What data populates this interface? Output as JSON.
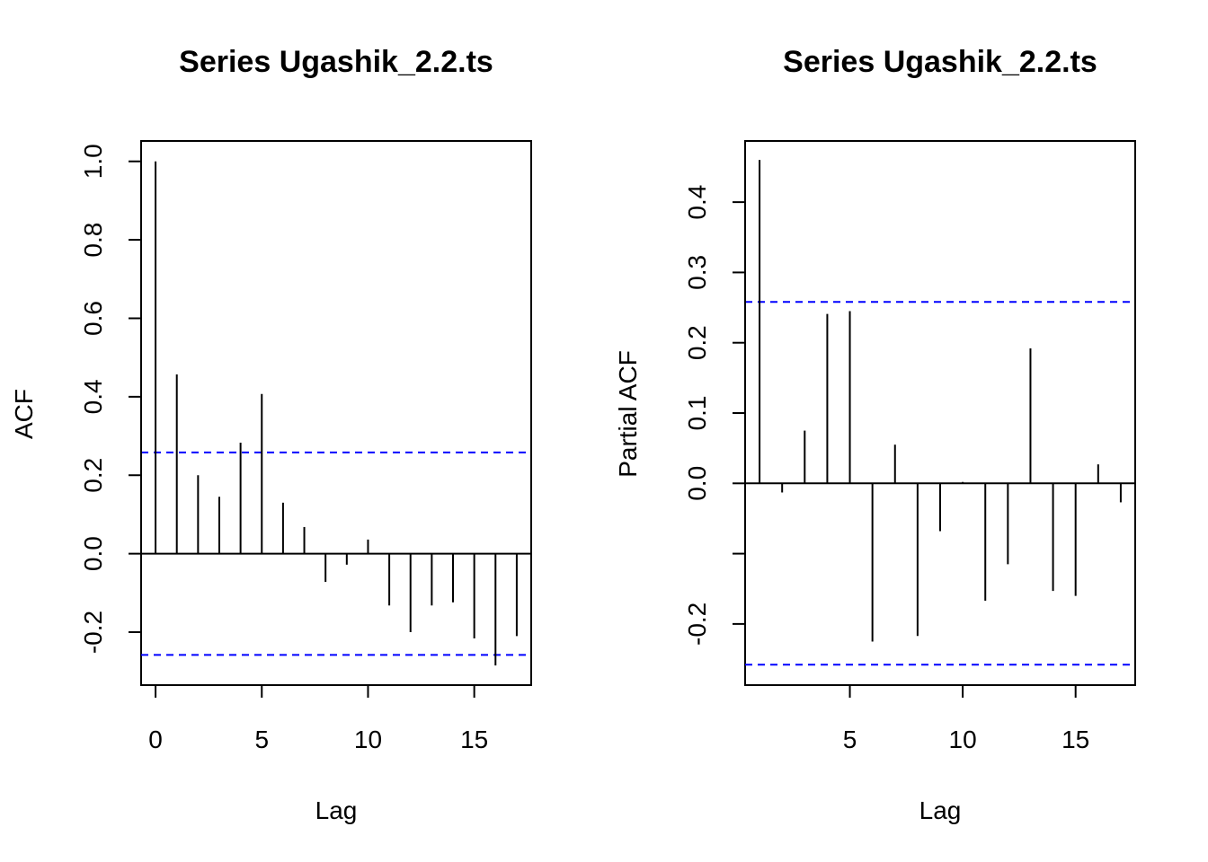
{
  "chart_data": [
    {
      "type": "bar",
      "subtype": "acf-stem",
      "title": "Series  Ugashik_2.2.ts",
      "xlabel": "Lag",
      "ylabel": "ACF",
      "xlim": [
        -0.68,
        17.68
      ],
      "ylim": [
        -0.335,
        1.052
      ],
      "xticks": [
        0,
        5,
        10,
        15
      ],
      "xtick_labels": [
        "0",
        "5",
        "10",
        "15"
      ],
      "yticks": [
        -0.2,
        0.0,
        0.2,
        0.4,
        0.6,
        0.8,
        1.0
      ],
      "ytick_labels": [
        "-0.2",
        "0.0",
        "0.2",
        "0.4",
        "0.6",
        "0.8",
        "1.0"
      ],
      "lags": [
        0,
        1,
        2,
        3,
        4,
        5,
        6,
        7,
        8,
        9,
        10,
        11,
        12,
        13,
        14,
        15,
        16,
        17
      ],
      "values": [
        1.0,
        0.457,
        0.2,
        0.145,
        0.283,
        0.407,
        0.13,
        0.068,
        -0.072,
        -0.028,
        0.036,
        -0.132,
        -0.2,
        -0.132,
        -0.124,
        -0.216,
        -0.285,
        -0.21
      ],
      "confidence_limits": [
        0.258,
        -0.258
      ],
      "colors": {
        "stem": "#000000",
        "ci_line": "#0000FF",
        "zero_line": "#000000"
      }
    },
    {
      "type": "bar",
      "subtype": "pacf-stem",
      "title": "Series  Ugashik_2.2.ts",
      "xlabel": "Lag",
      "ylabel": "Partial ACF",
      "xlim": [
        0.36,
        17.64
      ],
      "ylim": [
        -0.287,
        0.487
      ],
      "xticks": [
        5,
        10,
        15
      ],
      "xtick_labels": [
        "5",
        "10",
        "15"
      ],
      "yticks": [
        -0.2,
        -0.1,
        0.0,
        0.1,
        0.2,
        0.3,
        0.4
      ],
      "ytick_labels": [
        "-0.2",
        "",
        "0.0",
        "0.1",
        "0.2",
        "0.3",
        "0.4"
      ],
      "lags": [
        1,
        2,
        3,
        4,
        5,
        6,
        7,
        8,
        9,
        10,
        11,
        12,
        13,
        14,
        15,
        16,
        17
      ],
      "values": [
        0.46,
        -0.013,
        0.075,
        0.241,
        0.245,
        -0.225,
        0.055,
        -0.217,
        -0.068,
        0.002,
        -0.167,
        -0.115,
        0.192,
        -0.153,
        -0.16,
        0.027,
        -0.027
      ],
      "confidence_limits": [
        0.258,
        -0.258
      ],
      "colors": {
        "stem": "#000000",
        "ci_line": "#0000FF",
        "zero_line": "#000000"
      }
    }
  ]
}
